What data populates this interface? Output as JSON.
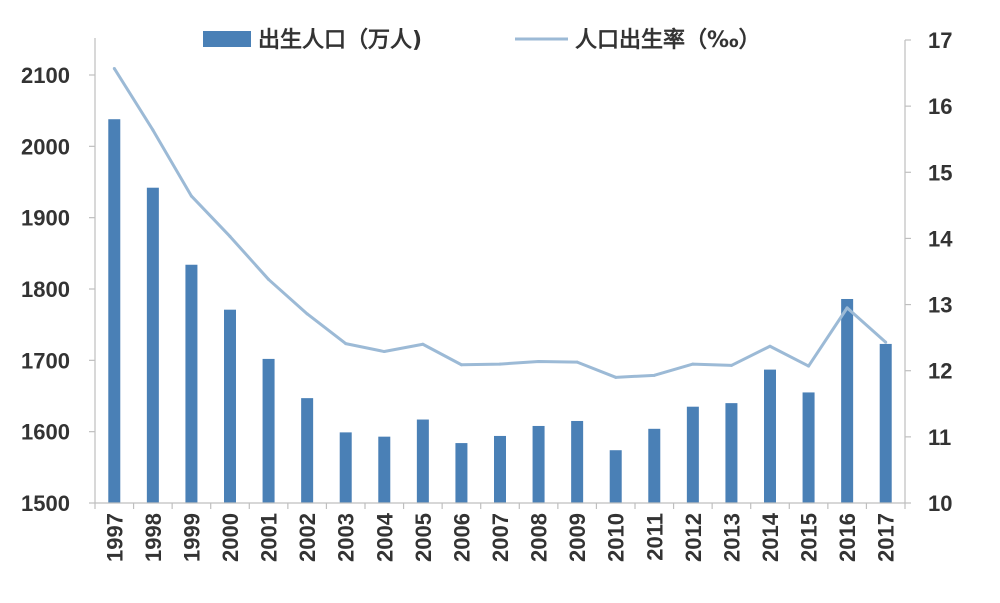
{
  "chart_data": {
    "type": "bar",
    "categories": [
      "1997",
      "1998",
      "1999",
      "2000",
      "2001",
      "2002",
      "2003",
      "2004",
      "2005",
      "2006",
      "2007",
      "2008",
      "2009",
      "2010",
      "2011",
      "2012",
      "2013",
      "2014",
      "2015",
      "2016",
      "2017"
    ],
    "series": [
      {
        "name": "出生人口（万人)",
        "type": "bar",
        "axis": "left",
        "color": "#4a80b6",
        "values": [
          2038,
          1942,
          1834,
          1771,
          1702,
          1647,
          1599,
          1593,
          1617,
          1584,
          1594,
          1608,
          1615,
          1574,
          1604,
          1635,
          1640,
          1687,
          1655,
          1786,
          1723
        ]
      },
      {
        "name": "人口出生率（‰）",
        "type": "line",
        "axis": "right",
        "color": "#9cbad6",
        "values": [
          16.57,
          15.64,
          14.64,
          14.03,
          13.38,
          12.86,
          12.41,
          12.29,
          12.4,
          12.09,
          12.1,
          12.14,
          12.13,
          11.9,
          11.93,
          12.1,
          12.08,
          12.37,
          12.07,
          12.95,
          12.43
        ]
      }
    ],
    "y_left": {
      "min": 1500,
      "max": 2100,
      "ticks": [
        "1500",
        "1600",
        "1700",
        "1800",
        "1900",
        "2000",
        "2100"
      ]
    },
    "y_right": {
      "min": 10,
      "max": 17,
      "ticks": [
        "10",
        "11",
        "12",
        "13",
        "14",
        "15",
        "16",
        "17"
      ]
    },
    "legend_position": "top-center",
    "grid": false
  }
}
